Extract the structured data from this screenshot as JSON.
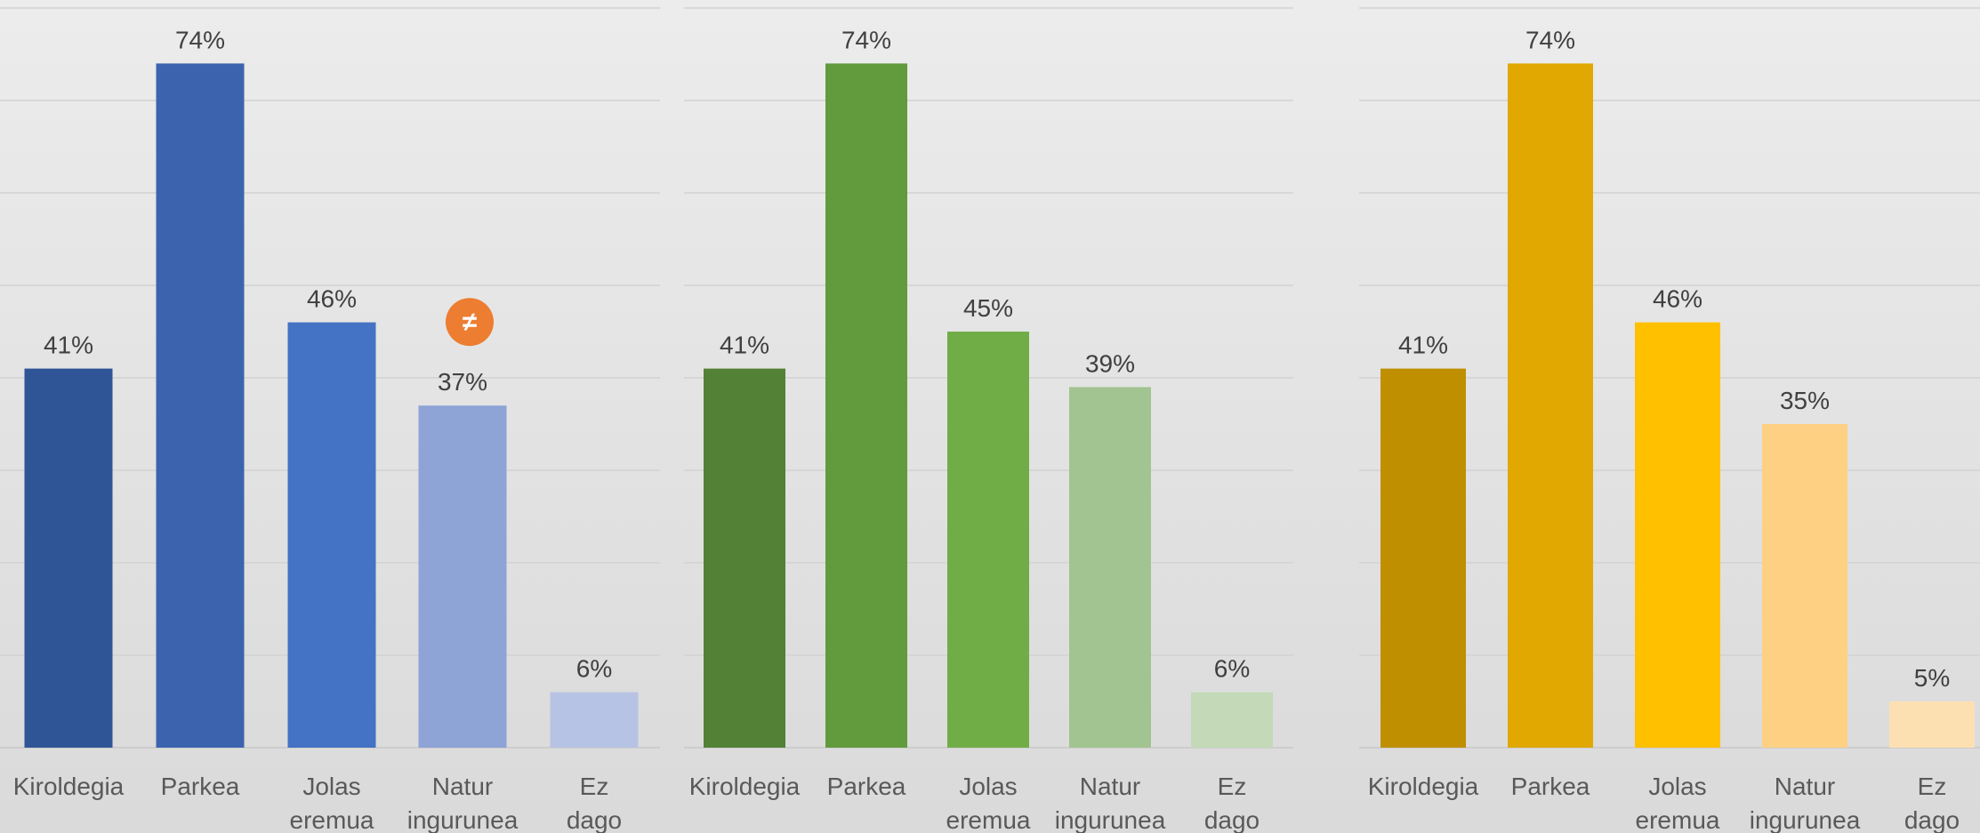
{
  "chart_data": [
    {
      "type": "bar",
      "categories": [
        "Kiroldegia",
        "Parkea",
        "Jolas eremua",
        "Natur ingurunea",
        "Ez dago"
      ],
      "values": [
        41,
        74,
        46,
        37,
        6
      ],
      "value_labels": [
        "41%",
        "74%",
        "46%",
        "37%",
        "6%"
      ],
      "colors": [
        "#2f5597",
        "#3c64ae",
        "#4472c4",
        "#8ea3d6",
        "#b7c3e4"
      ],
      "ylim": [
        0,
        80
      ],
      "grid": true,
      "badge": {
        "category": "Natur ingurunea",
        "symbol": "≠",
        "color": "#ed7d31"
      }
    },
    {
      "type": "bar",
      "categories": [
        "Kiroldegia",
        "Parkea",
        "Jolas eremua",
        "Natur ingurunea",
        "Ez dago"
      ],
      "values": [
        41,
        74,
        45,
        39,
        6
      ],
      "value_labels": [
        "41%",
        "74%",
        "45%",
        "39%",
        "6%"
      ],
      "colors": [
        "#538135",
        "#629a3e",
        "#70ad47",
        "#a2c490",
        "#c3d9b8"
      ],
      "ylim": [
        0,
        80
      ],
      "grid": true
    },
    {
      "type": "bar",
      "categories": [
        "Kiroldegia",
        "Parkea",
        "Jolas eremua",
        "Natur ingurunea",
        "Ez dago"
      ],
      "values": [
        41,
        74,
        46,
        35,
        5
      ],
      "value_labels": [
        "41%",
        "74%",
        "46%",
        "35%",
        "5%"
      ],
      "colors": [
        "#bf8f00",
        "#e0a800",
        "#ffc000",
        "#fed083",
        "#fde0b2"
      ],
      "ylim": [
        0,
        80
      ],
      "grid": true
    }
  ]
}
